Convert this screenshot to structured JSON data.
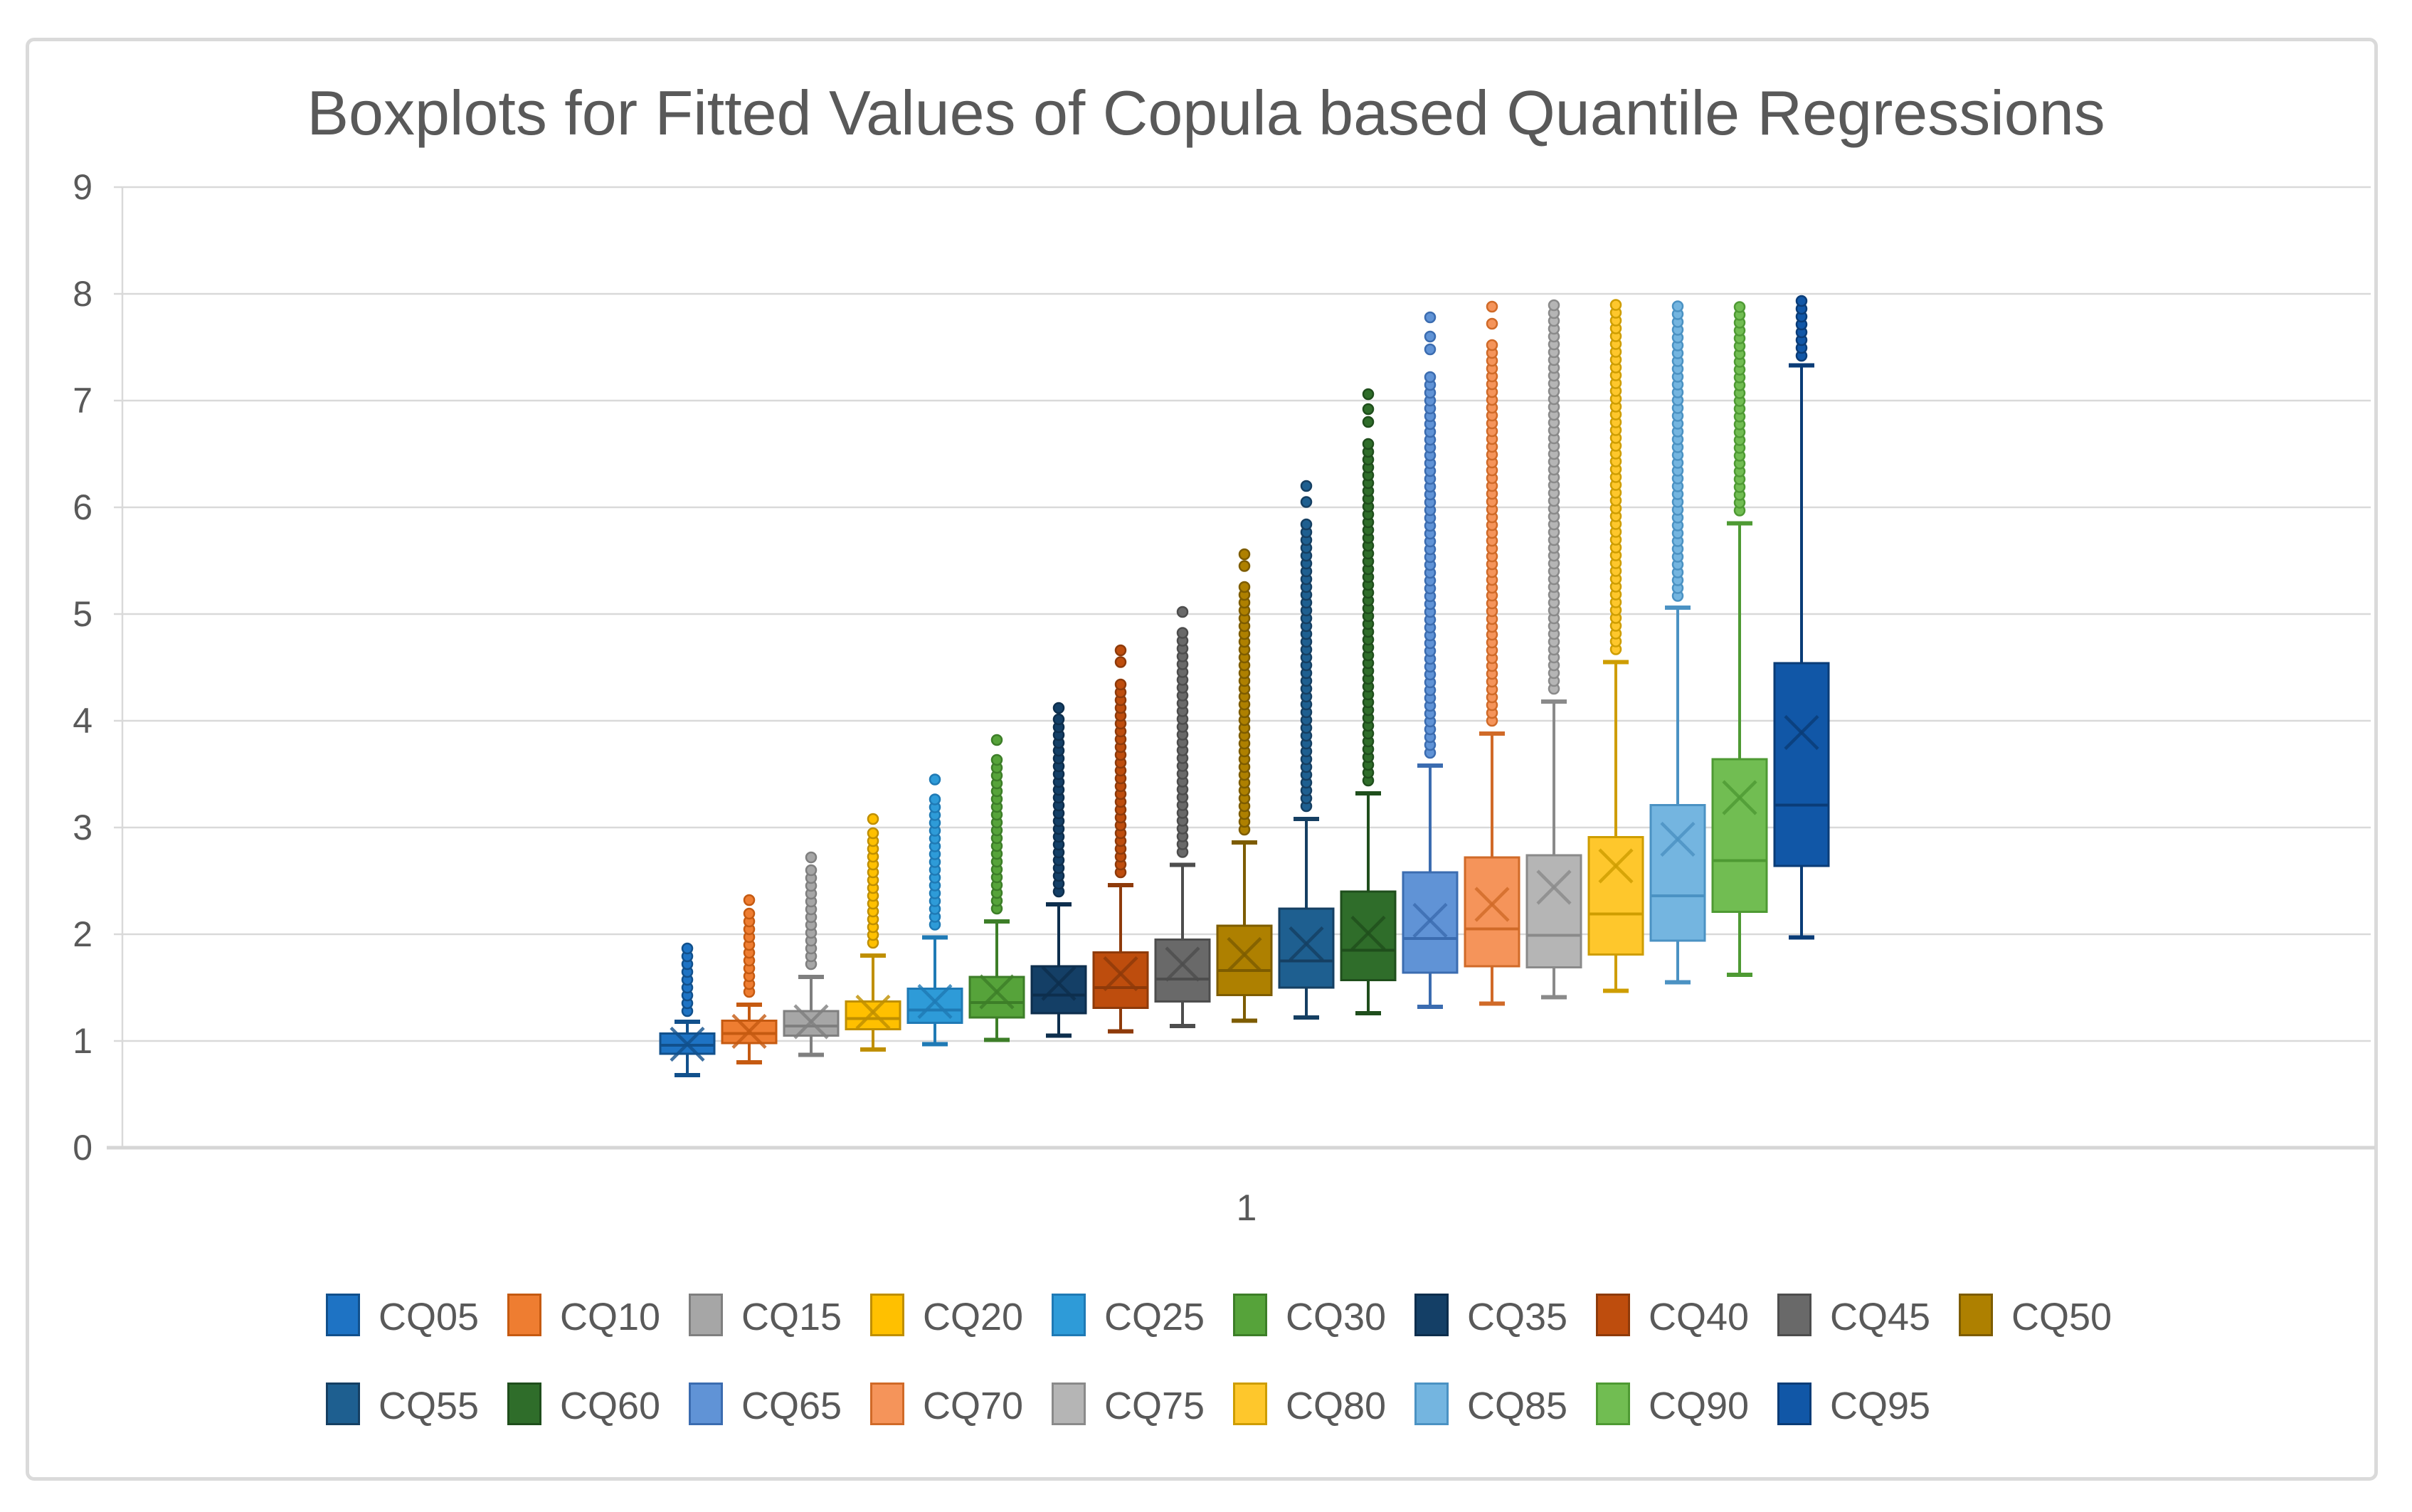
{
  "title": "Boxplots for Fitted Values of Copula based Quantile Regressions",
  "x_axis": {
    "category_label": "1"
  },
  "y_axis": {
    "tick_labels": [
      "0",
      "1",
      "2",
      "3",
      "4",
      "5",
      "6",
      "7",
      "8",
      "9"
    ],
    "min": 0,
    "max": 9
  },
  "colors": {
    "title_text": "#595959",
    "axis_text": "#595959",
    "gridline": "#D9D9D9",
    "axis_line": "#D6D6D6",
    "frame_border": "#DADADA",
    "background": "#FFFFFF"
  },
  "chart_data": {
    "type": "boxplot",
    "title": "Boxplots for Fitted Values of Copula based Quantile Regressions",
    "xlabel": "1",
    "ylabel": "",
    "ylim": [
      0,
      9
    ],
    "yticks": [
      0,
      1,
      2,
      3,
      4,
      5,
      6,
      7,
      8,
      9
    ],
    "grid": true,
    "legend_position": "bottom",
    "legend_rows": [
      10,
      9
    ],
    "series": [
      {
        "name": "CQ05",
        "fill": "#1E73C4",
        "border": "#11508C",
        "whisker_low": 0.68,
        "q1": 0.88,
        "median": 0.96,
        "q3": 1.07,
        "whisker_high": 1.18,
        "mean": 0.97,
        "outlier_low": 1.28,
        "outlier_high": 1.87,
        "extra_outliers": []
      },
      {
        "name": "CQ10",
        "fill": "#EE7D31",
        "border": "#C55A11",
        "whisker_low": 0.8,
        "q1": 0.98,
        "median": 1.07,
        "q3": 1.19,
        "whisker_high": 1.34,
        "mean": 1.09,
        "outlier_low": 1.46,
        "outlier_high": 2.2,
        "extra_outliers": [
          2.32
        ]
      },
      {
        "name": "CQ15",
        "fill": "#A6A6A6",
        "border": "#7F7F7F",
        "whisker_low": 0.87,
        "q1": 1.05,
        "median": 1.14,
        "q3": 1.28,
        "whisker_high": 1.6,
        "mean": 1.18,
        "outlier_low": 1.72,
        "outlier_high": 2.62,
        "extra_outliers": [
          2.72
        ]
      },
      {
        "name": "CQ20",
        "fill": "#FFC000",
        "border": "#BF8F00",
        "whisker_low": 0.92,
        "q1": 1.11,
        "median": 1.21,
        "q3": 1.37,
        "whisker_high": 1.8,
        "mean": 1.27,
        "outlier_low": 1.92,
        "outlier_high": 2.98,
        "extra_outliers": [
          3.08
        ]
      },
      {
        "name": "CQ25",
        "fill": "#2E9BD8",
        "border": "#1F7AB5",
        "whisker_low": 0.97,
        "q1": 1.17,
        "median": 1.29,
        "q3": 1.49,
        "whisker_high": 1.97,
        "mean": 1.37,
        "outlier_low": 2.09,
        "outlier_high": 3.32,
        "extra_outliers": [
          3.45
        ]
      },
      {
        "name": "CQ30",
        "fill": "#56A33A",
        "border": "#3D7E28",
        "whisker_low": 1.01,
        "q1": 1.22,
        "median": 1.36,
        "q3": 1.6,
        "whisker_high": 2.12,
        "mean": 1.46,
        "outlier_low": 2.24,
        "outlier_high": 3.7,
        "extra_outliers": [
          3.82
        ]
      },
      {
        "name": "CQ35",
        "fill": "#143F66",
        "border": "#0D2E4D",
        "whisker_low": 1.05,
        "q1": 1.26,
        "median": 1.43,
        "q3": 1.7,
        "whisker_high": 2.28,
        "mean": 1.54,
        "outlier_low": 2.4,
        "outlier_high": 4.02,
        "extra_outliers": [
          4.12
        ]
      },
      {
        "name": "CQ40",
        "fill": "#BE4D0D",
        "border": "#8E3A0A",
        "whisker_low": 1.09,
        "q1": 1.31,
        "median": 1.5,
        "q3": 1.83,
        "whisker_high": 2.46,
        "mean": 1.63,
        "outlier_low": 2.58,
        "outlier_high": 4.4,
        "extra_outliers": [
          4.55,
          4.66
        ]
      },
      {
        "name": "CQ45",
        "fill": "#696969",
        "border": "#4D4D4D",
        "whisker_low": 1.14,
        "q1": 1.37,
        "median": 1.58,
        "q3": 1.95,
        "whisker_high": 2.65,
        "mean": 1.72,
        "outlier_low": 2.77,
        "outlier_high": 4.85,
        "extra_outliers": [
          5.02
        ]
      },
      {
        "name": "CQ50",
        "fill": "#AE8000",
        "border": "#7D5C00",
        "whisker_low": 1.19,
        "q1": 1.43,
        "median": 1.66,
        "q3": 2.08,
        "whisker_high": 2.86,
        "mean": 1.81,
        "outlier_low": 2.98,
        "outlier_high": 5.3,
        "extra_outliers": [
          5.45,
          5.56
        ]
      },
      {
        "name": "CQ55",
        "fill": "#1E5F90",
        "border": "#153F62",
        "whisker_low": 1.22,
        "q1": 1.5,
        "median": 1.75,
        "q3": 2.24,
        "whisker_high": 3.08,
        "mean": 1.91,
        "outlier_low": 3.2,
        "outlier_high": 5.9,
        "extra_outliers": [
          6.05,
          6.2
        ]
      },
      {
        "name": "CQ60",
        "fill": "#2F6D2A",
        "border": "#1F4E1C",
        "whisker_low": 1.26,
        "q1": 1.57,
        "median": 1.85,
        "q3": 2.4,
        "whisker_high": 3.32,
        "mean": 2.01,
        "outlier_low": 3.44,
        "outlier_high": 6.6,
        "extra_outliers": [
          6.8,
          6.92,
          7.06
        ]
      },
      {
        "name": "CQ65",
        "fill": "#6093D6",
        "border": "#3B6CB0",
        "whisker_low": 1.32,
        "q1": 1.64,
        "median": 1.96,
        "q3": 2.58,
        "whisker_high": 3.58,
        "mean": 2.13,
        "outlier_low": 3.7,
        "outlier_high": 7.25,
        "extra_outliers": [
          7.48,
          7.6,
          7.78
        ]
      },
      {
        "name": "CQ70",
        "fill": "#F5945A",
        "border": "#D06A28",
        "whisker_low": 1.35,
        "q1": 1.7,
        "median": 2.05,
        "q3": 2.72,
        "whisker_high": 3.88,
        "mean": 2.28,
        "outlier_low": 4.0,
        "outlier_high": 7.55,
        "extra_outliers": [
          7.72,
          7.88
        ]
      },
      {
        "name": "CQ75",
        "fill": "#B5B5B5",
        "border": "#8A8A8A",
        "whisker_low": 1.41,
        "q1": 1.69,
        "median": 1.99,
        "q3": 2.74,
        "whisker_high": 4.18,
        "mean": 2.44,
        "outlier_low": 4.3,
        "outlier_high": 7.9,
        "extra_outliers": []
      },
      {
        "name": "CQ80",
        "fill": "#FEC72C",
        "border": "#CE9D00",
        "whisker_low": 1.47,
        "q1": 1.81,
        "median": 2.19,
        "q3": 2.91,
        "whisker_high": 4.55,
        "mean": 2.64,
        "outlier_low": 4.67,
        "outlier_high": 7.9,
        "extra_outliers": []
      },
      {
        "name": "CQ85",
        "fill": "#74B5E0",
        "border": "#4B92C3",
        "whisker_low": 1.55,
        "q1": 1.94,
        "median": 2.36,
        "q3": 3.21,
        "whisker_high": 5.06,
        "mean": 2.89,
        "outlier_low": 5.17,
        "outlier_high": 7.94,
        "extra_outliers": []
      },
      {
        "name": "CQ90",
        "fill": "#71BD52",
        "border": "#4E9A33",
        "whisker_low": 1.62,
        "q1": 2.21,
        "median": 2.69,
        "q3": 3.64,
        "whisker_high": 5.85,
        "mean": 3.28,
        "outlier_low": 5.97,
        "outlier_high": 7.9,
        "extra_outliers": []
      },
      {
        "name": "CQ95",
        "fill": "#1157A7",
        "border": "#0A3C77",
        "whisker_low": 1.97,
        "q1": 2.64,
        "median": 3.21,
        "q3": 4.54,
        "whisker_high": 7.33,
        "mean": 3.89,
        "outlier_low": 7.42,
        "outlier_high": 7.97,
        "extra_outliers": []
      }
    ]
  }
}
